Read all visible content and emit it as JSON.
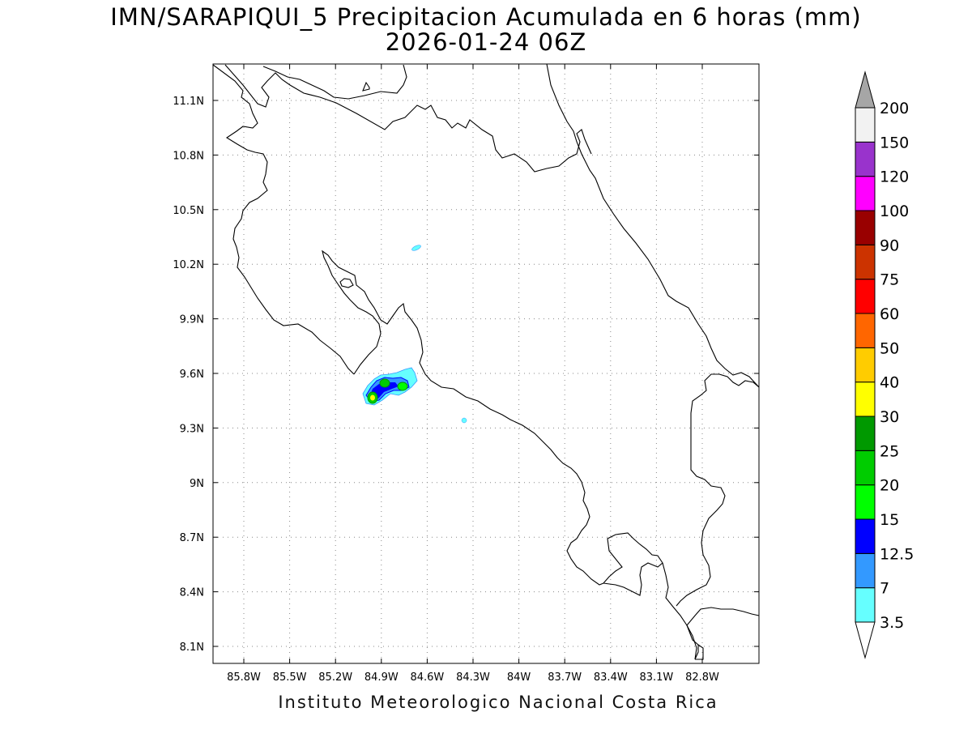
{
  "title": {
    "line1": "IMN/SARAPIQUI_5 Precipitacion Acumulada en 6 horas (mm)",
    "line2": "2026-01-24 06Z"
  },
  "footer": "Instituto Meteorologico Nacional Costa Rica",
  "map": {
    "lon_range": [
      -85.98,
      -82.5
    ],
    "lat_range": [
      7.99,
      11.29
    ],
    "x_tick_labels": [
      "85.8W",
      "85.5W",
      "85.2W",
      "84.9W",
      "84.6W",
      "84.3W",
      "84W",
      "83.7W",
      "83.4W",
      "83.1W",
      "82.8W"
    ],
    "y_tick_labels": [
      "11.1N",
      "10.8N",
      "10.5N",
      "10.2N",
      "9.9N",
      "9.6N",
      "9.3N",
      "9N",
      "8.7N",
      "8.4N",
      "8.1N"
    ],
    "grid": "dotted"
  },
  "colorbar": {
    "labels": [
      "3.5",
      "7",
      "12.5",
      "15",
      "20",
      "25",
      "30",
      "40",
      "50",
      "60",
      "75",
      "90",
      "100",
      "120",
      "150",
      "200"
    ],
    "colors": [
      "#66ffff",
      "#3399ff",
      "#0000ff",
      "#00ff00",
      "#00cc00",
      "#009900",
      "#ffff00",
      "#ffcc00",
      "#ff6600",
      "#ff0000",
      "#cc3300",
      "#990000",
      "#ff00ff",
      "#9933cc",
      "#f2f2f2"
    ],
    "under_color": "#ffffff",
    "over_color": "#a6a6a6"
  },
  "precip_areas": [
    {
      "name": "precip-cluster-main",
      "level": "3.5-7"
    },
    {
      "name": "precip-cluster-core",
      "level": "12.5-20"
    },
    {
      "name": "precip-cell-1",
      "level": "25-40"
    },
    {
      "name": "precip-cell-2",
      "level": "25-30"
    },
    {
      "name": "precip-cell-3",
      "level": "20-25"
    },
    {
      "name": "precip-spot-north",
      "level": "3.5-7"
    },
    {
      "name": "precip-spot-east",
      "level": "3.5-7"
    }
  ]
}
